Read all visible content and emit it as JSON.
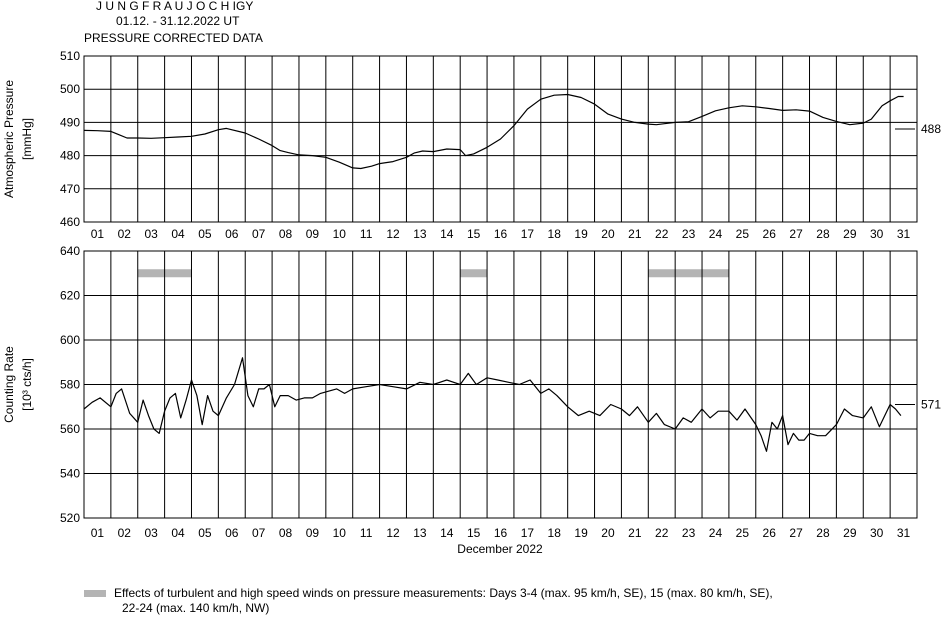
{
  "header": {
    "station": "J U N G F R A U J O C H  IGY",
    "period": "01.12. - 31.12.2022  UT",
    "subtitle": "PRESSURE CORRECTED DATA"
  },
  "legend": {
    "text_line1": "Effects of turbulent and high speed winds on pressure measurements: Days 3-4 (max. 95 km/h, SE), 15 (max. 80 km/h, SE),",
    "text_line2": "22-24 (max. 140 km/h, NW)",
    "color": "#b4b4b4"
  },
  "colors": {
    "line": "#000000",
    "grid": "#000000",
    "wind_bar": "#b4b4b4",
    "background": "#ffffff"
  },
  "chart_data": [
    {
      "type": "line",
      "ylabel": "Atmospheric Pressure",
      "yunit": "[mmHg]",
      "ylim": [
        460,
        510
      ],
      "yticks": [
        460,
        470,
        480,
        490,
        500,
        510
      ],
      "xlim": [
        1,
        32
      ],
      "xticklabels": [
        "01",
        "02",
        "03",
        "04",
        "05",
        "06",
        "07",
        "08",
        "09",
        "10",
        "11",
        "12",
        "13",
        "14",
        "15",
        "16",
        "17",
        "18",
        "19",
        "20",
        "21",
        "22",
        "23",
        "24",
        "25",
        "26",
        "27",
        "28",
        "29",
        "30",
        "31"
      ],
      "grid": true,
      "end_value_label": "488",
      "end_value": 488,
      "series": [
        {
          "x": [
            1.0,
            1.5,
            2.0,
            2.3,
            2.6,
            3.0,
            3.5,
            4.0,
            4.5,
            5.0,
            5.5,
            6.0,
            6.3,
            7.0,
            7.5,
            8.0,
            8.3,
            8.6,
            9.0,
            9.5,
            10.0,
            10.5,
            11.0,
            11.3,
            11.7,
            12.0,
            12.5,
            13.0,
            13.3,
            13.6,
            14.0,
            14.5,
            15.0,
            15.2,
            15.5,
            16.0,
            16.5,
            17.0,
            17.5,
            18.0,
            18.5,
            19.0,
            19.5,
            20.0,
            20.5,
            21.0,
            21.5,
            22.0,
            22.3,
            22.6,
            23.0,
            23.5,
            24.0,
            24.5,
            25.0,
            25.5,
            26.0,
            26.5,
            27.0,
            27.5,
            28.0,
            28.5,
            29.0,
            29.5,
            30.0,
            30.3,
            30.7,
            31.0,
            31.3,
            31.5
          ],
          "y": [
            487.6,
            487.5,
            487.3,
            486.3,
            485.3,
            485.3,
            485.2,
            485.4,
            485.6,
            485.8,
            486.5,
            487.8,
            488.2,
            486.8,
            485.0,
            483.0,
            481.5,
            480.9,
            480.2,
            480.0,
            479.5,
            478.0,
            476.3,
            476.1,
            476.8,
            477.6,
            478.2,
            479.5,
            480.8,
            481.4,
            481.2,
            482.0,
            481.8,
            480.0,
            480.5,
            482.5,
            485.0,
            489.0,
            494.0,
            497.0,
            498.2,
            498.4,
            497.5,
            495.5,
            492.5,
            491.0,
            490.0,
            489.5,
            489.3,
            489.6,
            490.0,
            490.2,
            491.8,
            493.5,
            494.4,
            495.0,
            494.7,
            494.2,
            493.6,
            493.8,
            493.4,
            491.5,
            490.3,
            489.3,
            489.8,
            491.0,
            495.0,
            496.5,
            497.8,
            497.8
          ]
        }
      ]
    },
    {
      "type": "line",
      "title": "",
      "ylabel": "Counting Rate",
      "yunit": "[10³ cts/h]",
      "ylim": [
        520,
        640
      ],
      "yticks": [
        520,
        540,
        560,
        580,
        600,
        620,
        640
      ],
      "xlim": [
        1,
        32
      ],
      "xticklabels": [
        "01",
        "02",
        "03",
        "04",
        "05",
        "06",
        "07",
        "08",
        "09",
        "10",
        "11",
        "12",
        "13",
        "14",
        "15",
        "16",
        "17",
        "18",
        "19",
        "20",
        "21",
        "22",
        "23",
        "24",
        "25",
        "26",
        "27",
        "28",
        "29",
        "30",
        "31"
      ],
      "xlabel": "December 2022",
      "grid": true,
      "end_value_label": "571",
      "end_value": 571,
      "wind_periods": [
        {
          "start": 3.0,
          "end": 5.0
        },
        {
          "start": 15.0,
          "end": 16.0
        },
        {
          "start": 22.0,
          "end": 25.0
        }
      ],
      "wind_level": 630,
      "series": [
        {
          "x": [
            1.0,
            1.3,
            1.6,
            2.0,
            2.2,
            2.4,
            2.7,
            3.0,
            3.2,
            3.4,
            3.6,
            3.8,
            4.0,
            4.2,
            4.4,
            4.6,
            4.8,
            5.0,
            5.2,
            5.4,
            5.6,
            5.8,
            6.0,
            6.3,
            6.6,
            6.9,
            7.1,
            7.3,
            7.5,
            7.7,
            7.9,
            8.1,
            8.3,
            8.6,
            8.9,
            9.2,
            9.5,
            9.8,
            10.1,
            10.4,
            10.7,
            11.0,
            11.5,
            12.0,
            12.5,
            13.0,
            13.5,
            14.0,
            14.5,
            15.0,
            15.3,
            15.6,
            16.0,
            16.4,
            16.8,
            17.2,
            17.6,
            18.0,
            18.3,
            18.6,
            19.0,
            19.4,
            19.8,
            20.2,
            20.6,
            21.0,
            21.3,
            21.6,
            22.0,
            22.3,
            22.6,
            23.0,
            23.3,
            23.6,
            24.0,
            24.3,
            24.6,
            25.0,
            25.3,
            25.6,
            26.0,
            26.2,
            26.4,
            26.6,
            26.8,
            27.0,
            27.2,
            27.4,
            27.6,
            27.8,
            28.0,
            28.3,
            28.6,
            29.0,
            29.3,
            29.6,
            30.0,
            30.3,
            30.6,
            31.0,
            31.2,
            31.4
          ],
          "y": [
            569,
            572,
            574,
            570,
            576,
            578,
            567,
            563,
            573,
            566,
            560,
            558,
            568,
            574,
            576,
            565,
            573,
            582,
            575,
            562,
            575,
            568,
            566,
            574,
            580,
            592,
            575,
            570,
            578,
            578,
            580,
            570,
            575,
            575,
            573,
            574,
            574,
            576,
            577,
            578,
            576,
            578,
            579,
            580,
            579,
            578,
            581,
            580,
            582,
            580,
            585,
            580,
            583,
            582,
            581,
            580,
            582,
            576,
            578,
            575,
            570,
            566,
            568,
            566,
            571,
            569,
            566,
            570,
            563,
            567,
            562,
            560,
            565,
            563,
            569,
            565,
            568,
            568,
            564,
            569,
            562,
            557,
            550,
            563,
            560,
            566,
            553,
            558,
            555,
            555,
            558,
            557,
            557,
            562,
            569,
            566,
            565,
            570,
            561,
            571,
            569,
            566
          ]
        }
      ]
    }
  ]
}
